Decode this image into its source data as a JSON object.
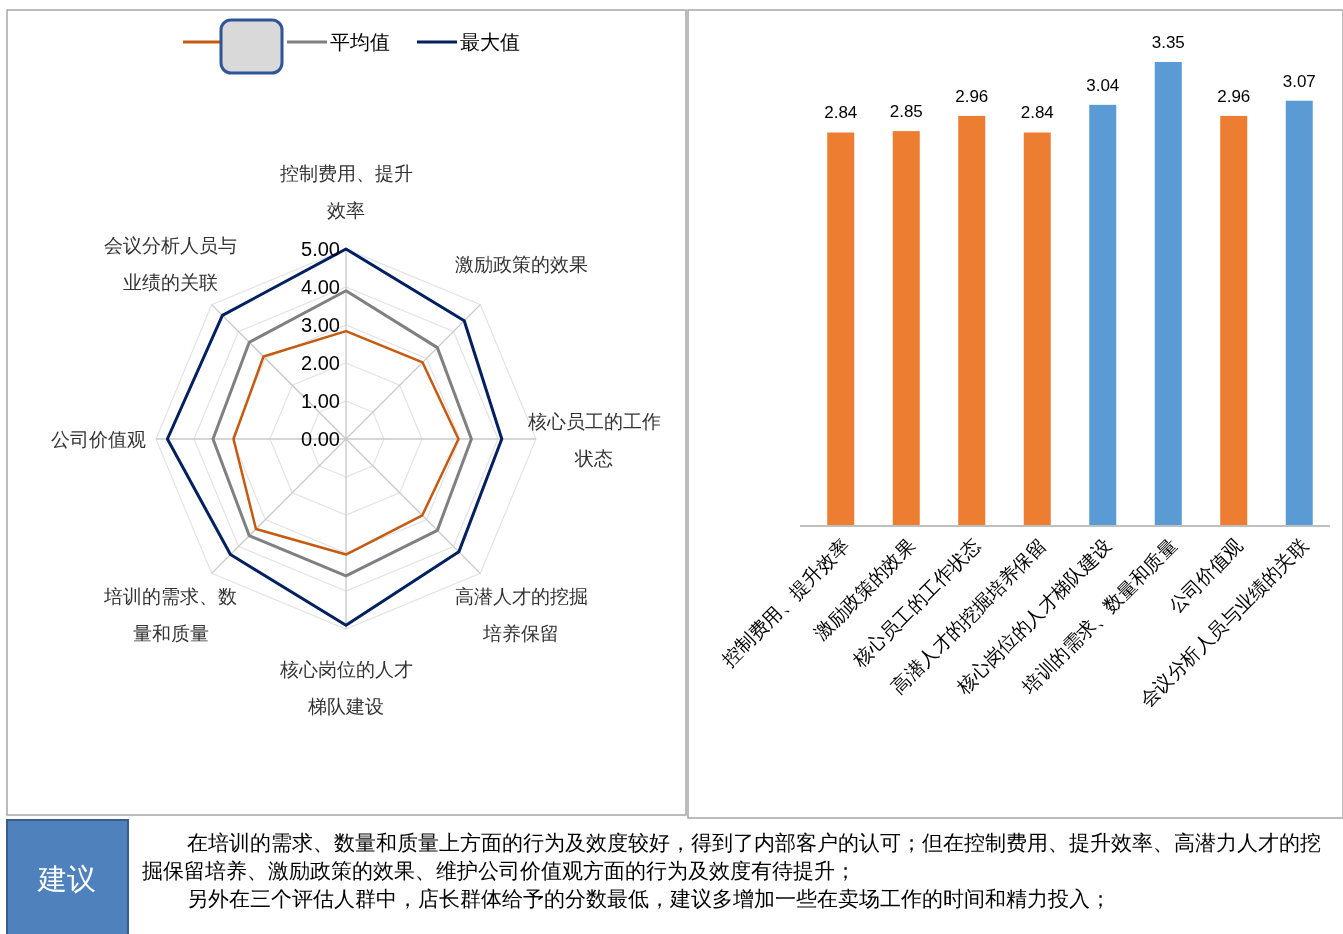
{
  "chart_data": [
    {
      "type": "radar",
      "categories": [
        "控制费用、提升效率",
        "激励政策的效果",
        "核心员工的工作状态",
        "高潜人才的挖掘培养保留",
        "核心岗位的人才梯队建设",
        "培训的需求、数量和质量",
        "公司价值观",
        "会议分析人员与业绩的关联"
      ],
      "series": [
        {
          "color": "#c55a11",
          "values": [
            2.84,
            2.85,
            2.96,
            2.84,
            3.04,
            3.35,
            2.96,
            3.07
          ]
        },
        {
          "name": "平均值",
          "color": "#808080",
          "values": [
            3.9,
            3.4,
            3.3,
            3.4,
            3.6,
            3.6,
            3.5,
            3.6
          ]
        },
        {
          "name": "最大值",
          "color": "#002060",
          "values": [
            5.0,
            4.4,
            4.1,
            4.2,
            4.9,
            4.3,
            4.7,
            4.6
          ]
        }
      ],
      "ylim": [
        0,
        5
      ],
      "yticks": [
        {
          "value": 0,
          "label": "0.00"
        },
        {
          "value": 1,
          "label": "1.00"
        },
        {
          "value": 2,
          "label": "2.00"
        },
        {
          "value": 3,
          "label": "3.00"
        },
        {
          "value": 4,
          "label": "4.00"
        },
        {
          "value": 5,
          "label": "5.00"
        }
      ],
      "grid": true,
      "legend": "top"
    },
    {
      "type": "bar",
      "categories": [
        "控制费用、提升效率",
        "激励政策的效果",
        "核心员工的工作状态",
        "高潜人才的挖掘培养保留",
        "核心岗位的人才梯队建设",
        "培训的需求、数量和质量",
        "公司价值观",
        "会议分析人员与业绩的关联"
      ],
      "values": [
        2.84,
        2.85,
        2.96,
        2.84,
        3.04,
        3.35,
        2.96,
        3.07
      ],
      "colors": [
        "#ed7d31",
        "#ed7d31",
        "#ed7d31",
        "#ed7d31",
        "#5b9bd5",
        "#5b9bd5",
        "#ed7d31",
        "#5b9bd5"
      ],
      "data_labels": true
    },
    {
      "type": "other",
      "annotations": [
        "建议",
        "在培训的需求、数量和质量上方面的行为及效度较好，得到了内部客户的认可；但在控制费用、提升效率、高潜力人才的挖掘保留培养、激励政策的效果、维护公司价值观方面的行为及效度有待提升；",
        "另外在三个评估人群中，店长群体给予的分数最低，建议多增加一些在卖场工作的时间和精力投入；"
      ]
    }
  ]
}
